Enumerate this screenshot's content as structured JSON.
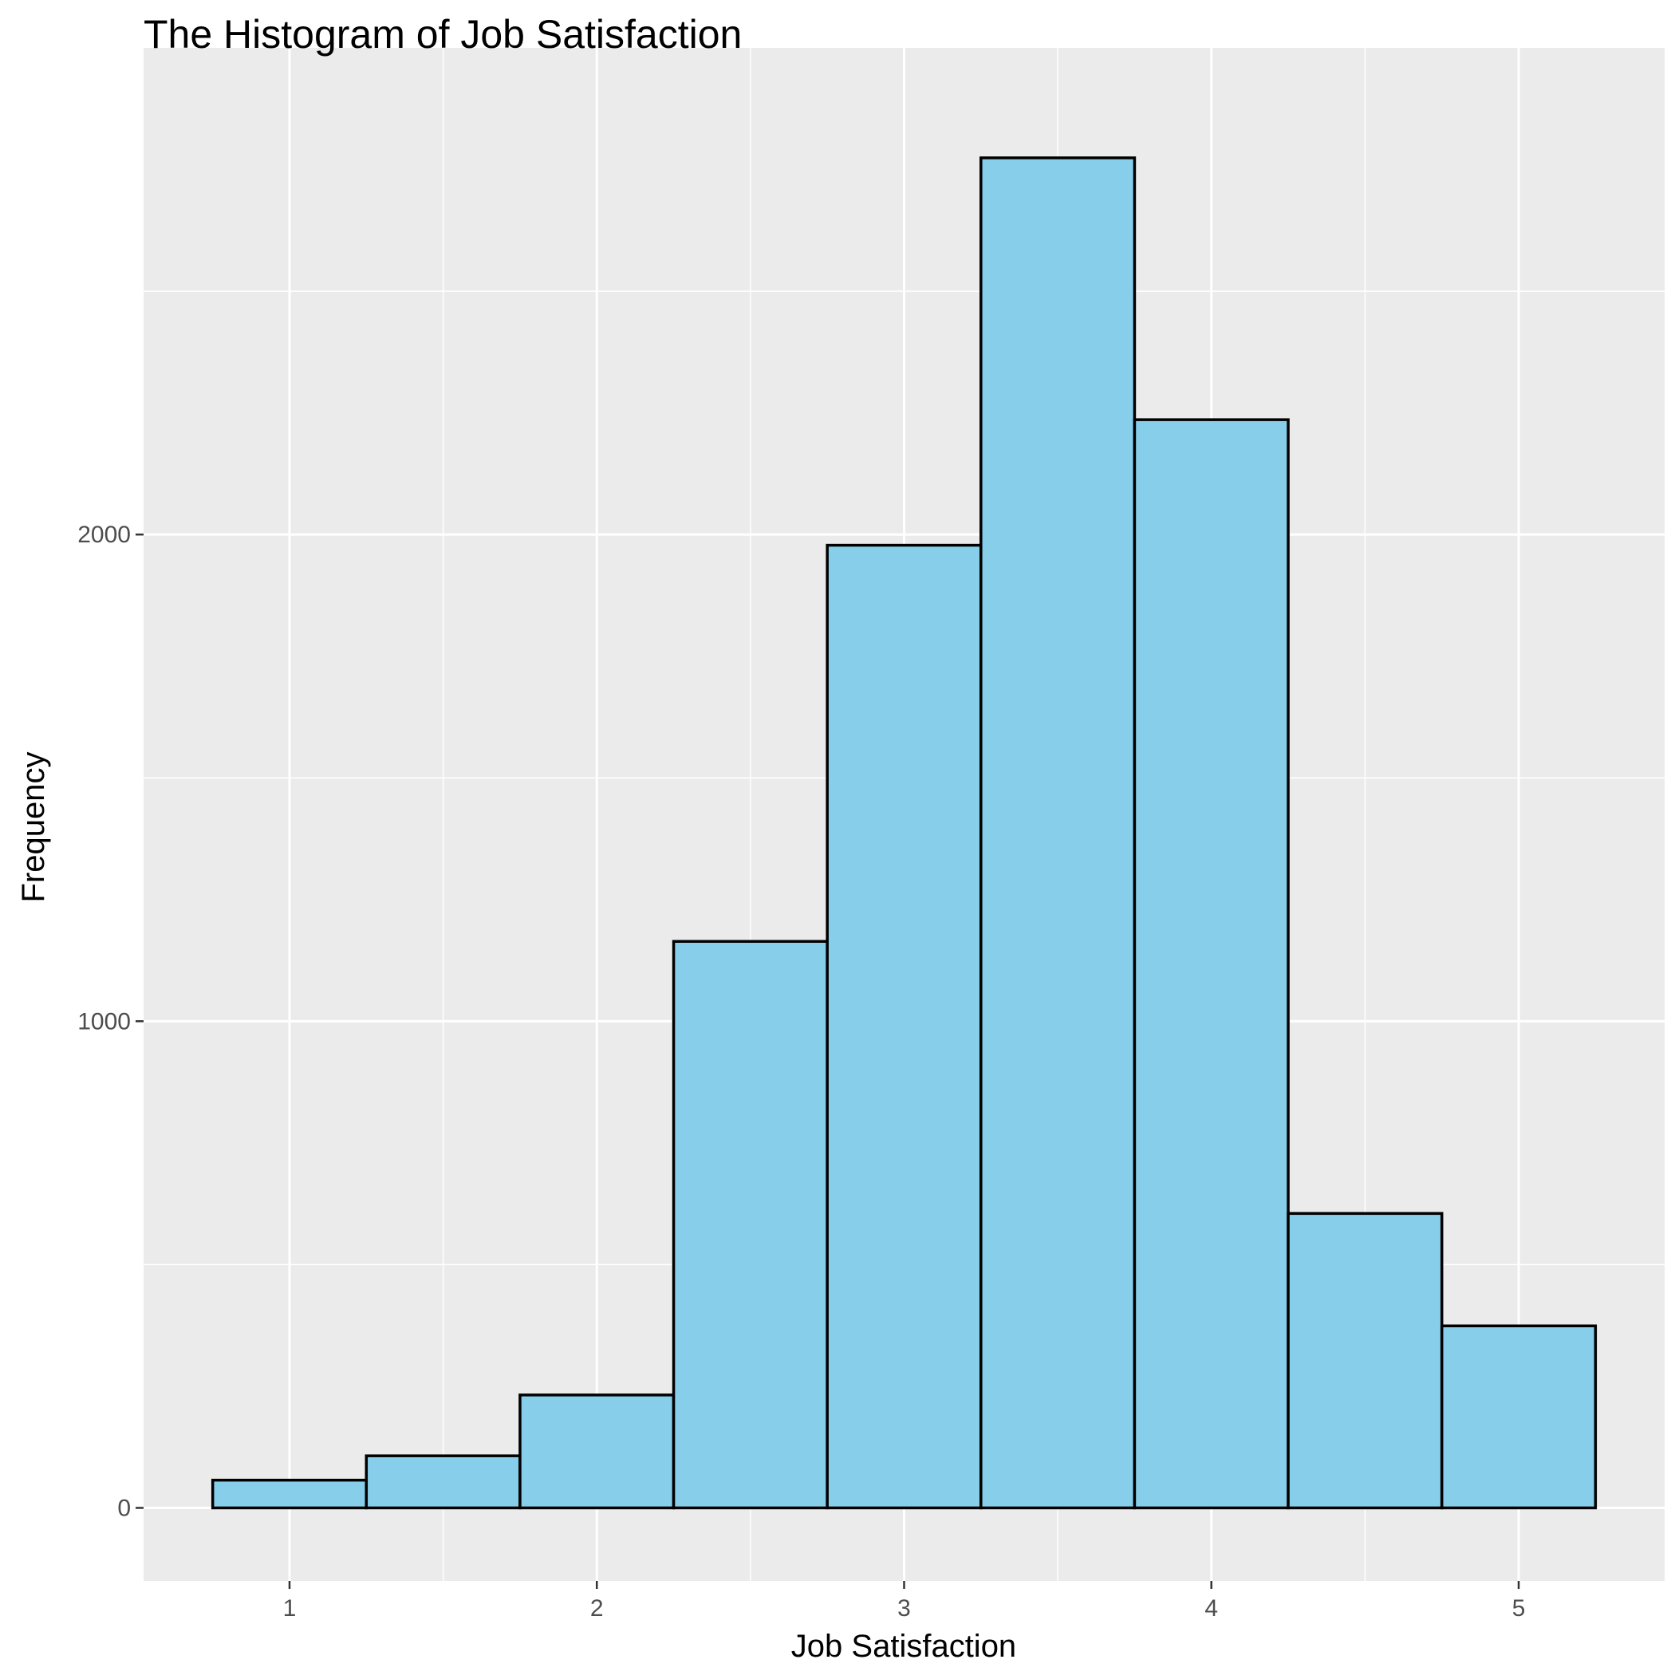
{
  "chart_data": {
    "type": "bar",
    "title": "The Histogram of Job Satisfaction",
    "xlabel": "Job Satisfaction",
    "ylabel": "Frequency",
    "bin_width": 0.5,
    "bins": [
      {
        "start": 0.75,
        "end": 1.25,
        "count": 57
      },
      {
        "start": 1.25,
        "end": 1.75,
        "count": 107
      },
      {
        "start": 1.75,
        "end": 2.25,
        "count": 232
      },
      {
        "start": 2.25,
        "end": 2.75,
        "count": 1164
      },
      {
        "start": 2.75,
        "end": 3.25,
        "count": 1978
      },
      {
        "start": 3.25,
        "end": 3.75,
        "count": 2774
      },
      {
        "start": 3.75,
        "end": 4.25,
        "count": 2236
      },
      {
        "start": 4.25,
        "end": 4.75,
        "count": 605
      },
      {
        "start": 4.75,
        "end": 5.25,
        "count": 374
      }
    ],
    "xlim": [
      0.525,
      5.475
    ],
    "ylim": [
      -150,
      3000
    ],
    "x_ticks": [
      1,
      2,
      3,
      4,
      5
    ],
    "y_ticks": [
      0,
      1000,
      2000
    ],
    "grid": true,
    "colors": {
      "panel_background": "#ebebeb",
      "grid": "#ffffff",
      "bar_fill": "#87ceeb",
      "bar_outline": "#000000",
      "tick_label": "#4d4d4d"
    }
  }
}
